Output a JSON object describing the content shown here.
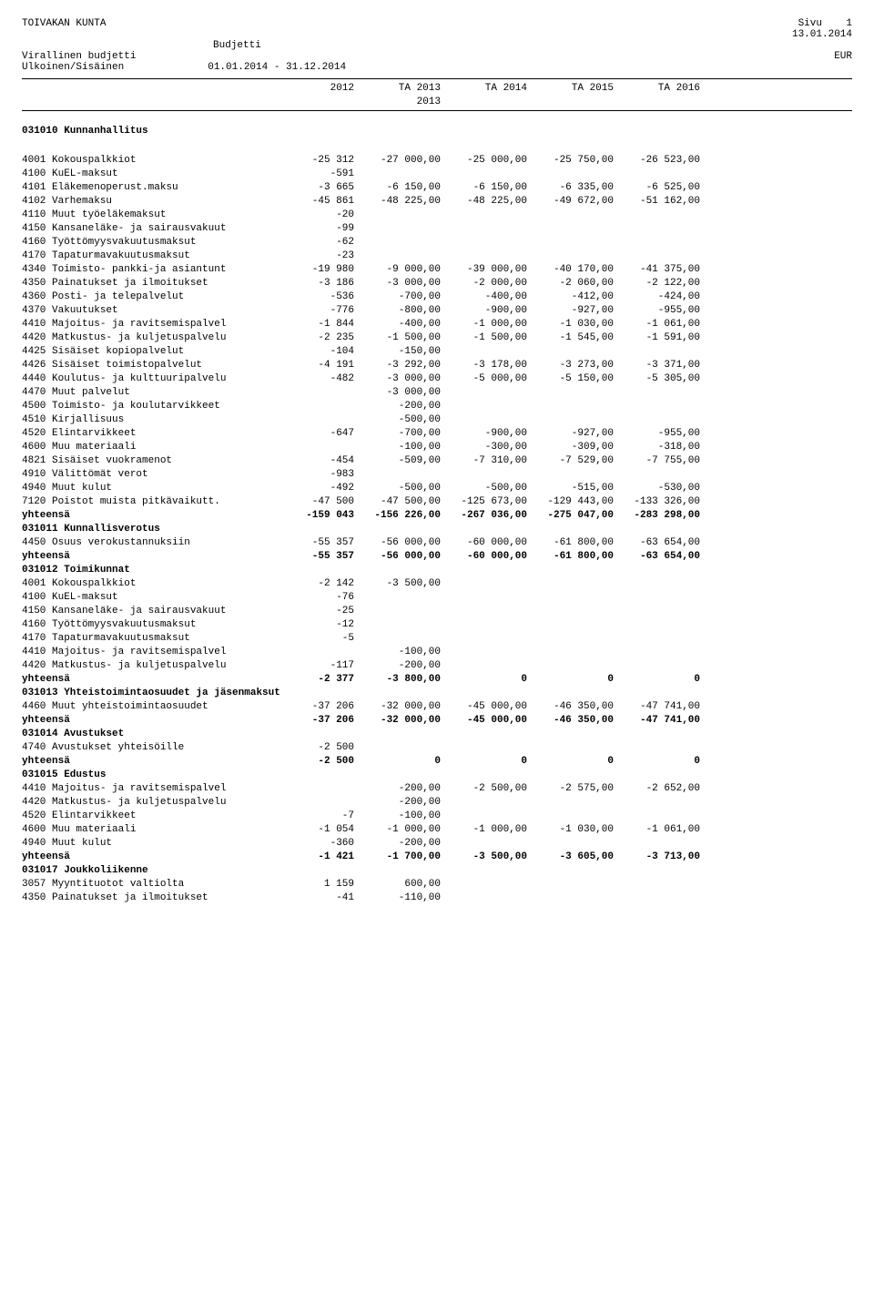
{
  "header": {
    "org": "TOIVAKAN KUNTA",
    "page_label": "Sivu",
    "page_num": "1",
    "date": "13.01.2014",
    "budget_label": "Budjetti",
    "official": "Virallinen budjetti",
    "currency": "EUR",
    "scope": "Ulkoinen/Sisäinen",
    "range": "01.01.2014 - 31.12.2014"
  },
  "columns": {
    "c1": "2012",
    "c2": "TA 2013",
    "c2b": "2013",
    "c3": "TA 2014",
    "c4": "TA 2015",
    "c5": "TA 2016"
  },
  "sections": [
    {
      "title": "031010 Kunnanhallitus",
      "rows": [
        [
          "4001 Kokouspalkkiot",
          "-25 312",
          "-27 000,00",
          "-25 000,00",
          "-25 750,00",
          "-26 523,00"
        ],
        [
          "4100 KuEL-maksut",
          "-591",
          "",
          "",
          "",
          ""
        ],
        [
          "4101 Eläkemenoperust.maksu",
          "-3 665",
          "-6 150,00",
          "-6 150,00",
          "-6 335,00",
          "-6 525,00"
        ],
        [
          "4102 Varhemaksu",
          "-45 861",
          "-48 225,00",
          "-48 225,00",
          "-49 672,00",
          "-51 162,00"
        ],
        [
          "4110 Muut työeläkemaksut",
          "-20",
          "",
          "",
          "",
          ""
        ],
        [
          "4150 Kansaneläke- ja sairausvakuut",
          "-99",
          "",
          "",
          "",
          ""
        ],
        [
          "4160 Työttömyysvakuutusmaksut",
          "-62",
          "",
          "",
          "",
          ""
        ],
        [
          "4170 Tapaturmavakuutusmaksut",
          "-23",
          "",
          "",
          "",
          ""
        ],
        [
          "4340 Toimisto- pankki-ja asiantunt",
          "-19 980",
          "-9 000,00",
          "-39 000,00",
          "-40 170,00",
          "-41 375,00"
        ],
        [
          "4350 Painatukset ja ilmoitukset",
          "-3 186",
          "-3 000,00",
          "-2 000,00",
          "-2 060,00",
          "-2 122,00"
        ],
        [
          "4360 Posti- ja telepalvelut",
          "-536",
          "-700,00",
          "-400,00",
          "-412,00",
          "-424,00"
        ],
        [
          "4370 Vakuutukset",
          "-776",
          "-800,00",
          "-900,00",
          "-927,00",
          "-955,00"
        ],
        [
          "4410 Majoitus- ja ravitsemispalvel",
          "-1 844",
          "-400,00",
          "-1 000,00",
          "-1 030,00",
          "-1 061,00"
        ],
        [
          "4420 Matkustus- ja kuljetuspalvelu",
          "-2 235",
          "-1 500,00",
          "-1 500,00",
          "-1 545,00",
          "-1 591,00"
        ],
        [
          "4425 Sisäiset kopiopalvelut",
          "-104",
          "-150,00",
          "",
          "",
          ""
        ],
        [
          "4426 Sisäiset toimistopalvelut",
          "-4 191",
          "-3 292,00",
          "-3 178,00",
          "-3 273,00",
          "-3 371,00"
        ],
        [
          "4440 Koulutus- ja kulttuuripalvelu",
          "-482",
          "-3 000,00",
          "-5 000,00",
          "-5 150,00",
          "-5 305,00"
        ],
        [
          "4470 Muut palvelut",
          "",
          "-3 000,00",
          "",
          "",
          ""
        ],
        [
          "4500 Toimisto- ja koulutarvikkeet",
          "",
          "-200,00",
          "",
          "",
          ""
        ],
        [
          "4510 Kirjallisuus",
          "",
          "-500,00",
          "",
          "",
          ""
        ],
        [
          "4520 Elintarvikkeet",
          "-647",
          "-700,00",
          "-900,00",
          "-927,00",
          "-955,00"
        ],
        [
          "4600 Muu materiaali",
          "",
          "-100,00",
          "-300,00",
          "-309,00",
          "-318,00"
        ],
        [
          "4821 Sisäiset vuokramenot",
          "-454",
          "-509,00",
          "-7 310,00",
          "-7 529,00",
          "-7 755,00"
        ],
        [
          "4910 Välittömät verot",
          "-983",
          "",
          "",
          "",
          ""
        ],
        [
          "4940 Muut kulut",
          "-492",
          "-500,00",
          "-500,00",
          "-515,00",
          "-530,00"
        ],
        [
          "7120 Poistot muista pitkävaikutt.",
          "-47 500",
          "-47 500,00",
          "-125 673,00",
          "-129 443,00",
          "-133 326,00"
        ]
      ],
      "total": [
        "yhteensä",
        "-159 043",
        "-156 226,00",
        "-267 036,00",
        "-275 047,00",
        "-283 298,00"
      ]
    },
    {
      "title": "031011 Kunnallisverotus",
      "rows": [
        [
          "4450 Osuus verokustannuksiin",
          "-55 357",
          "-56 000,00",
          "-60 000,00",
          "-61 800,00",
          "-63 654,00"
        ]
      ],
      "total": [
        "yhteensä",
        "-55 357",
        "-56 000,00",
        "-60 000,00",
        "-61 800,00",
        "-63 654,00"
      ]
    },
    {
      "title": "031012 Toimikunnat",
      "rows": [
        [
          "4001 Kokouspalkkiot",
          "-2 142",
          "-3 500,00",
          "",
          "",
          ""
        ],
        [
          "4100 KuEL-maksut",
          "-76",
          "",
          "",
          "",
          ""
        ],
        [
          "4150 Kansaneläke- ja sairausvakuut",
          "-25",
          "",
          "",
          "",
          ""
        ],
        [
          "4160 Työttömyysvakuutusmaksut",
          "-12",
          "",
          "",
          "",
          ""
        ],
        [
          "4170 Tapaturmavakuutusmaksut",
          "-5",
          "",
          "",
          "",
          ""
        ],
        [
          "4410 Majoitus- ja ravitsemispalvel",
          "",
          "-100,00",
          "",
          "",
          ""
        ],
        [
          "4420 Matkustus- ja kuljetuspalvelu",
          "-117",
          "-200,00",
          "",
          "",
          ""
        ]
      ],
      "total": [
        "yhteensä",
        "-2 377",
        "-3 800,00",
        "0",
        "0",
        "0"
      ]
    },
    {
      "title": "031013 Yhteistoimintaosuudet ja jäsenmaksut",
      "rows": [
        [
          "4460 Muut yhteistoimintaosuudet",
          "-37 206",
          "-32 000,00",
          "-45 000,00",
          "-46 350,00",
          "-47 741,00"
        ]
      ],
      "total": [
        "yhteensä",
        "-37 206",
        "-32 000,00",
        "-45 000,00",
        "-46 350,00",
        "-47 741,00"
      ]
    },
    {
      "title": "031014 Avustukset",
      "rows": [
        [
          "4740 Avustukset yhteisöille",
          "-2 500",
          "",
          "",
          "",
          ""
        ]
      ],
      "total": [
        "yhteensä",
        "-2 500",
        "0",
        "0",
        "0",
        "0"
      ]
    },
    {
      "title": "031015 Edustus",
      "rows": [
        [
          "4410 Majoitus- ja ravitsemispalvel",
          "",
          "-200,00",
          "-2 500,00",
          "-2 575,00",
          "-2 652,00"
        ],
        [
          "4420 Matkustus- ja kuljetuspalvelu",
          "",
          "-200,00",
          "",
          "",
          ""
        ],
        [
          "4520 Elintarvikkeet",
          "-7",
          "-100,00",
          "",
          "",
          ""
        ],
        [
          "4600 Muu materiaali",
          "-1 054",
          "-1 000,00",
          "-1 000,00",
          "-1 030,00",
          "-1 061,00"
        ],
        [
          "4940 Muut kulut",
          "-360",
          "-200,00",
          "",
          "",
          ""
        ]
      ],
      "total": [
        "yhteensä",
        "-1 421",
        "-1 700,00",
        "-3 500,00",
        "-3 605,00",
        "-3 713,00"
      ]
    },
    {
      "title": "031017 Joukkoliikenne",
      "rows": [
        [
          "3057 Myyntituotot valtiolta",
          "1 159",
          "600,00",
          "",
          "",
          ""
        ],
        [
          "4350 Painatukset ja ilmoitukset",
          "-41",
          "-110,00",
          "",
          "",
          ""
        ]
      ]
    }
  ]
}
